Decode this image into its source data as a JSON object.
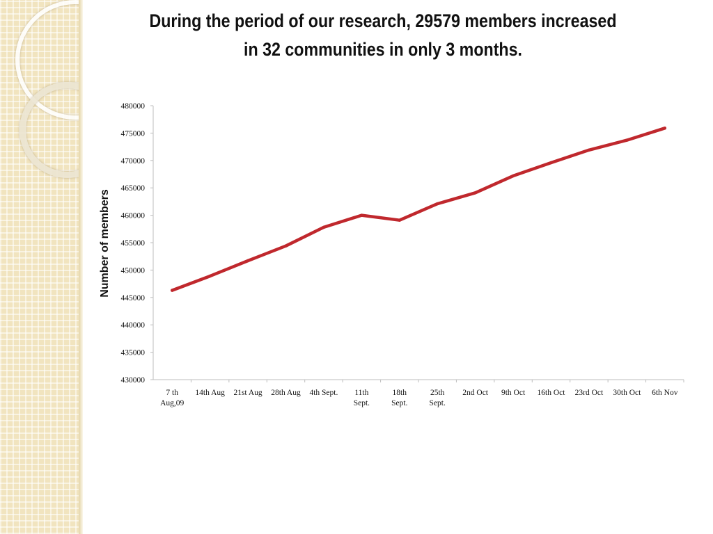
{
  "slide": {
    "title_line1": "During the period of our research, 29579 members increased",
    "title_line2": "in 32 communities in only 3 months."
  },
  "chart_data": {
    "type": "line",
    "title": "",
    "xlabel": "",
    "ylabel": "Number of members",
    "ylim": [
      430000,
      480000
    ],
    "yticks": [
      430000,
      435000,
      440000,
      445000,
      450000,
      455000,
      460000,
      465000,
      470000,
      475000,
      480000
    ],
    "grid": false,
    "categories": [
      [
        "7 th",
        "Aug,09"
      ],
      [
        "14th Aug"
      ],
      [
        "21st Aug"
      ],
      [
        "28th Aug"
      ],
      [
        "4th Sept."
      ],
      [
        "11th",
        "Sept."
      ],
      [
        "18th",
        "Sept."
      ],
      [
        "25th",
        "Sept."
      ],
      [
        "2nd Oct"
      ],
      [
        "9th Oct"
      ],
      [
        "16th Oct"
      ],
      [
        "23rd Oct"
      ],
      [
        "30th Oct"
      ],
      [
        "6th Nov"
      ]
    ],
    "series": [
      {
        "color": "#c0282d",
        "values": [
          446300,
          448900,
          451700,
          454400,
          457800,
          460000,
          459100,
          462100,
          464100,
          467200,
          469600,
          471900,
          473700,
          475900
        ]
      }
    ]
  }
}
